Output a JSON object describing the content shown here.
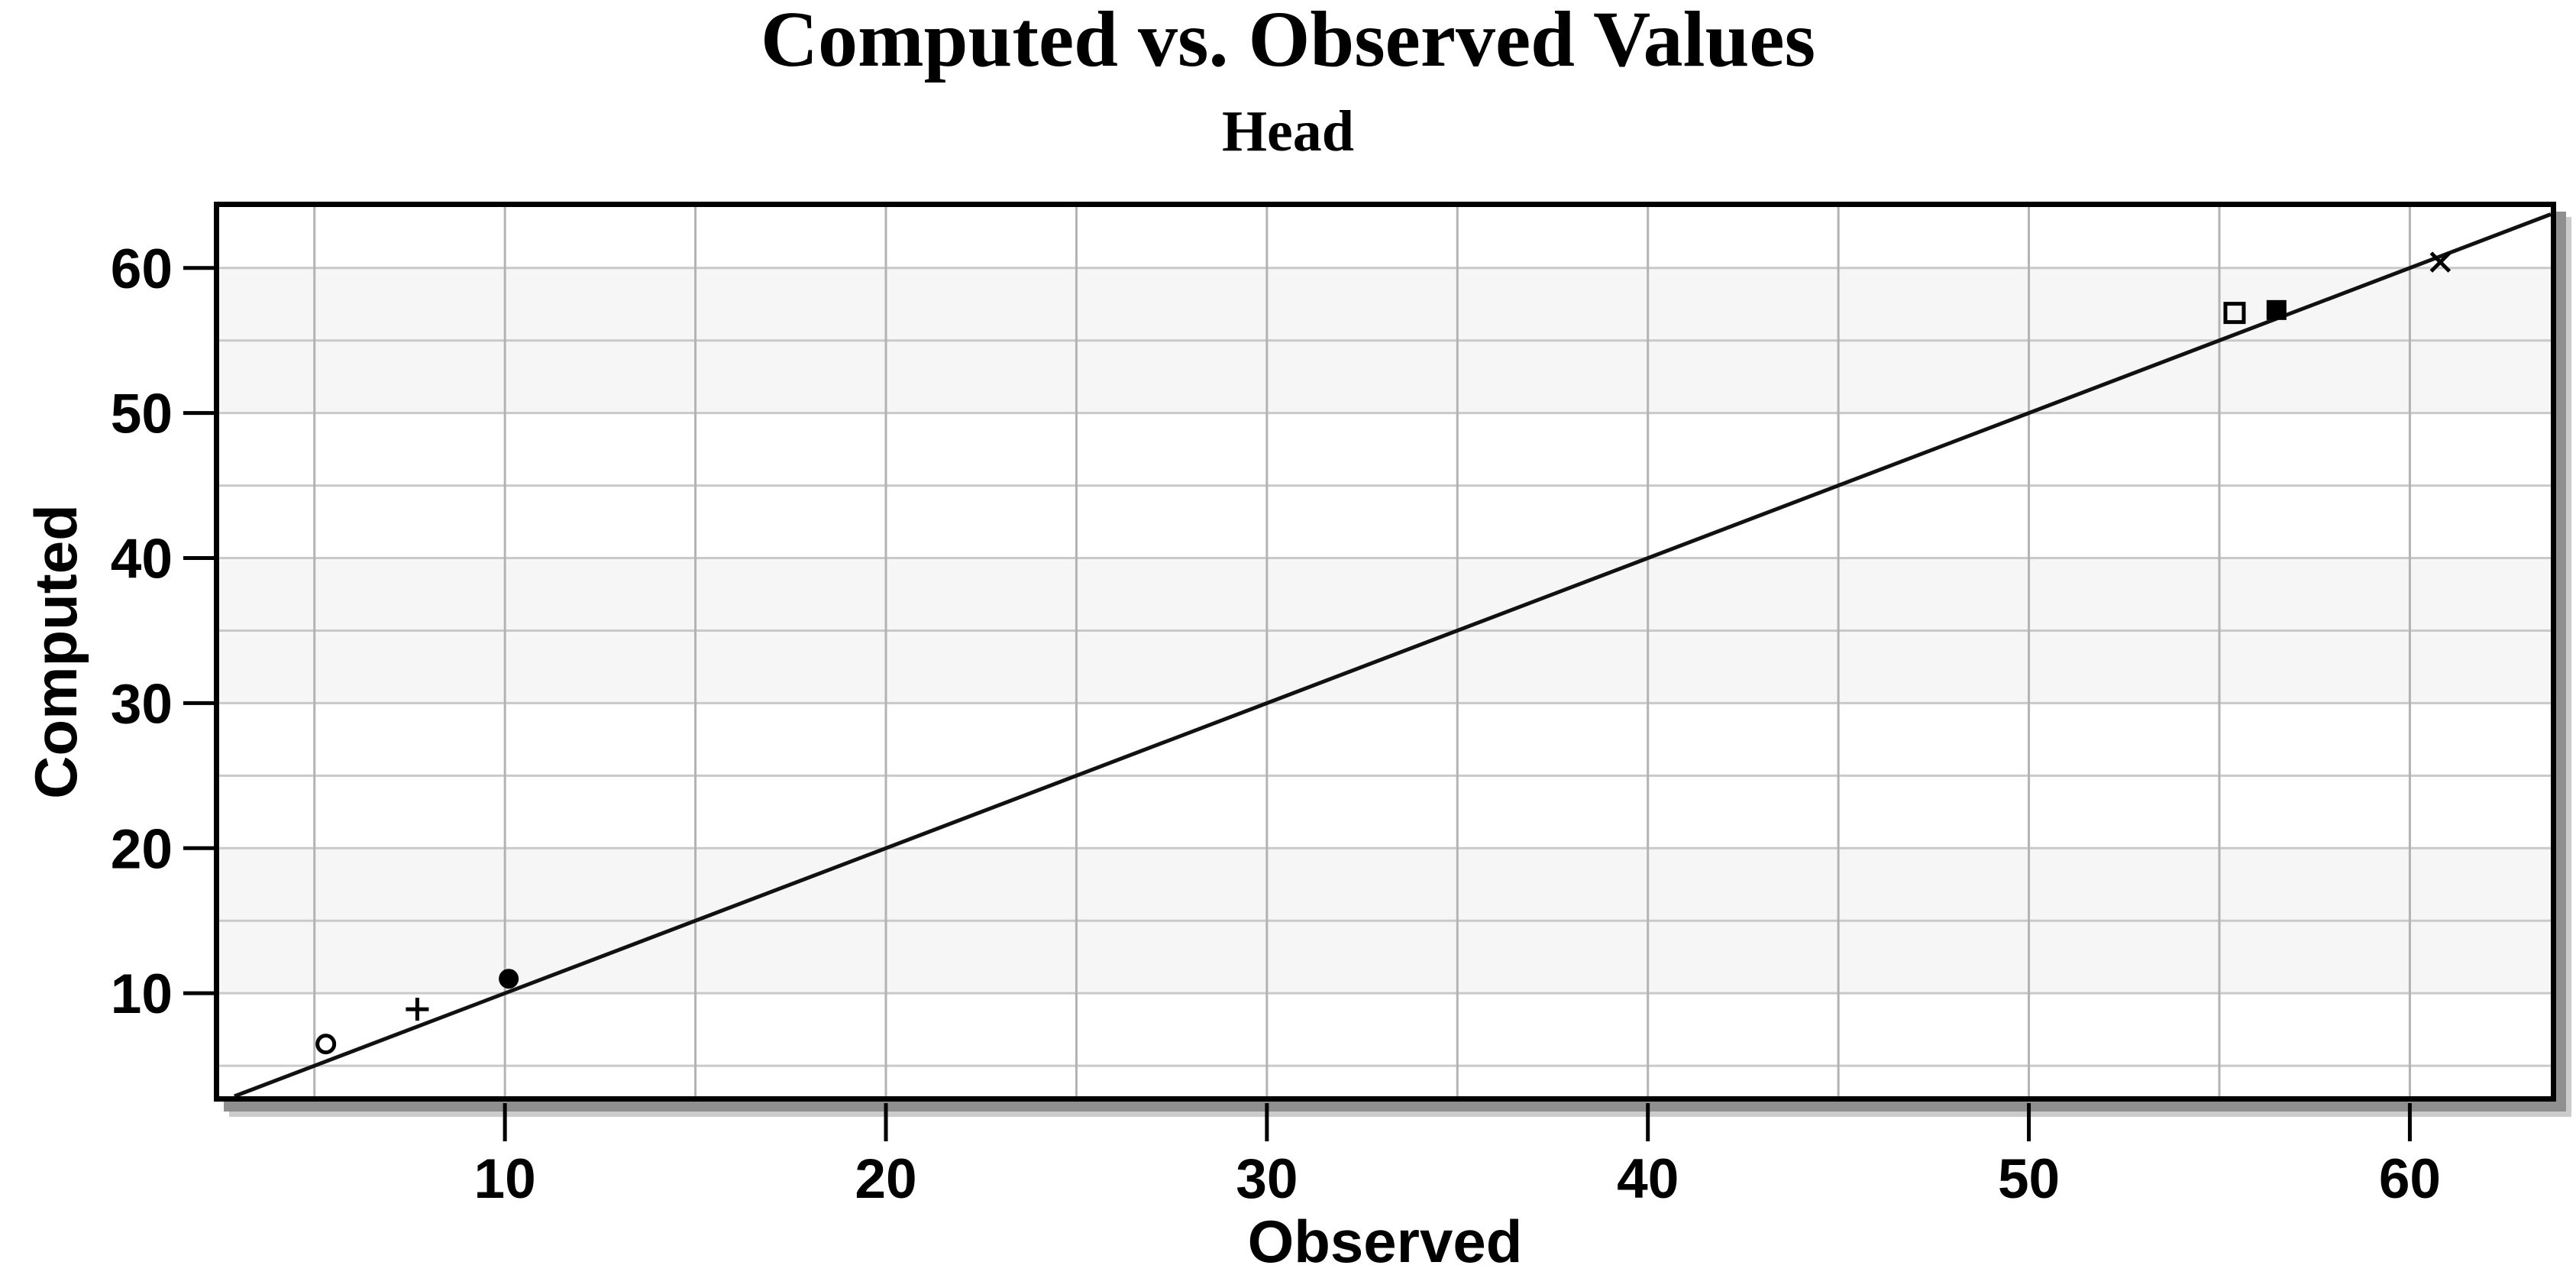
{
  "chart_data": {
    "type": "scatter",
    "title": "Computed vs. Observed Values",
    "subtitle": "Head",
    "xlabel": "Observed",
    "ylabel": "Computed",
    "xlim": [
      2.5,
      63.7
    ],
    "ylim": [
      2.9,
      64.2
    ],
    "x_ticks": [
      10,
      20,
      30,
      40,
      50,
      60
    ],
    "y_ticks": [
      10,
      20,
      30,
      40,
      50,
      60
    ],
    "minor_grid_step": 5,
    "grid": true,
    "legend": "none",
    "shaded_y_bands": [
      [
        10,
        20
      ],
      [
        30,
        40
      ],
      [
        50,
        60
      ]
    ],
    "reference_line": {
      "name": "1:1 line (y = x)",
      "slope": 1,
      "intercept": 0
    },
    "points": [
      {
        "marker": "open-circle",
        "observed": 5.3,
        "computed": 6.5
      },
      {
        "marker": "plus",
        "observed": 7.7,
        "computed": 8.9
      },
      {
        "marker": "filled-circle",
        "observed": 10.1,
        "computed": 11.0
      },
      {
        "marker": "open-square",
        "observed": 55.4,
        "computed": 56.9
      },
      {
        "marker": "filled-square",
        "observed": 56.5,
        "computed": 57.1
      },
      {
        "marker": "x-cross",
        "observed": 60.8,
        "computed": 60.4
      }
    ],
    "colors": {
      "background": "#ffffff",
      "band_shade": "#f6f6f6",
      "grid_horizontal": "#c9c9c9",
      "grid_vertical": "#b3b3b3",
      "axis_frame": "#000000",
      "reference_line": "#111111",
      "marker": "#000000",
      "tick_label": "#000000",
      "shadow_dark": "#8f8f8f",
      "shadow_light": "#cbcbcb"
    }
  }
}
